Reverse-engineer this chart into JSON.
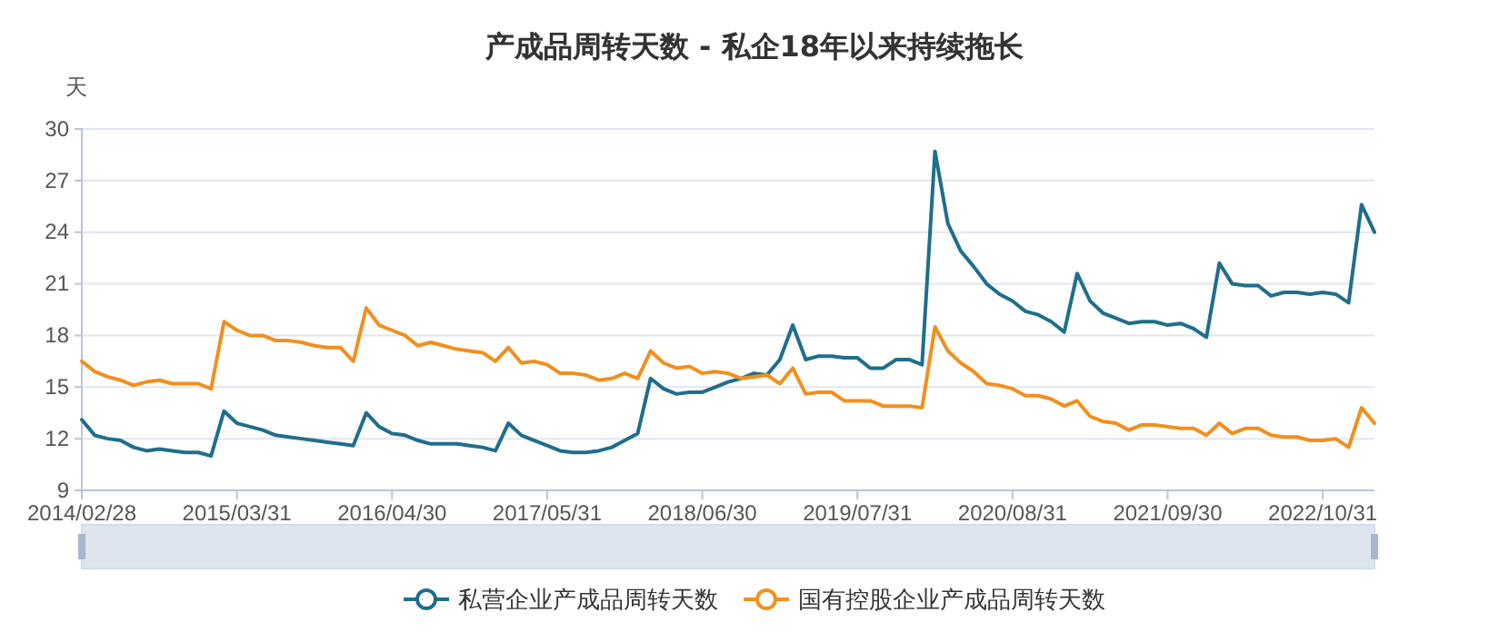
{
  "chart_data": {
    "type": "line",
    "title": "产成品周转天数 - 私企18年以来持续拖长",
    "ylabel": "天",
    "categories": [
      "2014/02/28",
      null,
      null,
      null,
      null,
      null,
      null,
      null,
      null,
      null,
      null,
      null,
      "2015/03/31",
      null,
      null,
      null,
      null,
      null,
      null,
      null,
      null,
      null,
      null,
      null,
      "2016/04/30",
      null,
      null,
      null,
      null,
      null,
      null,
      null,
      null,
      null,
      null,
      null,
      "2017/05/31",
      null,
      null,
      null,
      null,
      null,
      null,
      null,
      null,
      null,
      null,
      null,
      "2018/06/30",
      null,
      null,
      null,
      null,
      null,
      null,
      null,
      null,
      null,
      null,
      null,
      "2019/07/31",
      null,
      null,
      null,
      null,
      null,
      null,
      null,
      null,
      null,
      null,
      null,
      "2020/08/31",
      null,
      null,
      null,
      null,
      null,
      null,
      null,
      null,
      null,
      null,
      null,
      "2021/09/30",
      null,
      null,
      null,
      null,
      null,
      null,
      null,
      null,
      null,
      null,
      null,
      "2022/10/31",
      null,
      null,
      null,
      null
    ],
    "series": [
      {
        "name": "私营企业产成品周转天数",
        "color": "#1f6e8c",
        "values": [
          13.1,
          12.2,
          12.0,
          11.9,
          11.5,
          11.3,
          11.4,
          11.3,
          11.2,
          11.2,
          11.0,
          13.6,
          12.9,
          12.7,
          12.5,
          12.2,
          12.1,
          12.0,
          11.9,
          11.8,
          11.7,
          11.6,
          13.5,
          12.7,
          12.3,
          12.2,
          11.9,
          11.7,
          11.7,
          11.7,
          11.6,
          11.5,
          11.3,
          12.9,
          12.2,
          11.9,
          11.6,
          11.3,
          11.2,
          11.2,
          11.3,
          11.5,
          11.9,
          12.3,
          15.5,
          14.9,
          14.6,
          14.7,
          14.7,
          15.0,
          15.3,
          15.5,
          15.8,
          15.7,
          16.6,
          18.6,
          16.6,
          16.8,
          16.8,
          16.7,
          16.7,
          16.1,
          16.1,
          16.6,
          16.6,
          16.3,
          28.7,
          24.5,
          22.9,
          22.0,
          21.0,
          20.4,
          20.0,
          19.4,
          19.2,
          18.8,
          18.2,
          21.6,
          20.0,
          19.3,
          19.0,
          18.7,
          18.8,
          18.8,
          18.6,
          18.7,
          18.4,
          17.9,
          22.2,
          21.0,
          20.9,
          20.9,
          20.3,
          20.5,
          20.5,
          20.4,
          20.5,
          20.4,
          19.9,
          25.6,
          24.0
        ]
      },
      {
        "name": "国有控股企业产成品周转天数",
        "color": "#f0901e",
        "values": [
          16.5,
          15.9,
          15.6,
          15.4,
          15.1,
          15.3,
          15.4,
          15.2,
          15.2,
          15.2,
          14.9,
          18.8,
          18.3,
          18.0,
          18.0,
          17.7,
          17.7,
          17.6,
          17.4,
          17.3,
          17.3,
          16.5,
          19.6,
          18.6,
          18.3,
          18.0,
          17.4,
          17.6,
          17.4,
          17.2,
          17.1,
          17.0,
          16.5,
          17.3,
          16.4,
          16.5,
          16.3,
          15.8,
          15.8,
          15.7,
          15.4,
          15.5,
          15.8,
          15.5,
          17.1,
          16.4,
          16.1,
          16.2,
          15.8,
          15.9,
          15.8,
          15.5,
          15.6,
          15.7,
          15.2,
          16.1,
          14.6,
          14.7,
          14.7,
          14.2,
          14.2,
          14.2,
          13.9,
          13.9,
          13.9,
          13.8,
          18.5,
          17.1,
          16.4,
          15.9,
          15.2,
          15.1,
          14.9,
          14.5,
          14.5,
          14.3,
          13.9,
          14.2,
          13.3,
          13.0,
          12.9,
          12.5,
          12.8,
          12.8,
          12.7,
          12.6,
          12.6,
          12.2,
          12.9,
          12.3,
          12.6,
          12.6,
          12.2,
          12.1,
          12.1,
          11.9,
          11.9,
          12.0,
          11.5,
          13.8,
          12.9
        ]
      }
    ],
    "ylim": [
      9,
      30
    ],
    "yticks": [
      9,
      12,
      15,
      18,
      21,
      24,
      27,
      30
    ],
    "grid": "y",
    "legend": "bottom",
    "marker": "none",
    "line_style": "solid"
  }
}
